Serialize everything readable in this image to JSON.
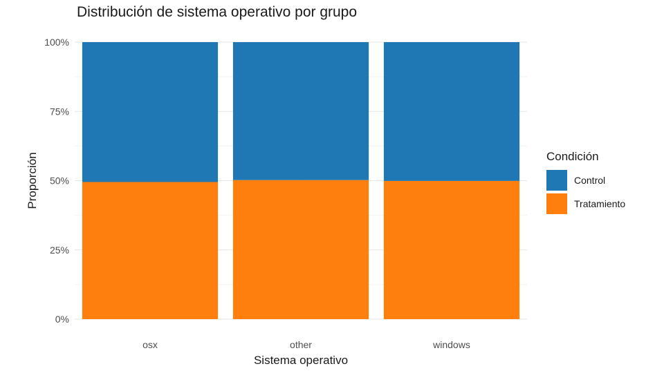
{
  "chart_data": {
    "type": "bar",
    "stacked": true,
    "title": "Distribución de sistema operativo por grupo",
    "xlabel": "Sistema operativo",
    "ylabel": "Proporción",
    "categories": [
      "osx",
      "other",
      "windows"
    ],
    "series": [
      {
        "name": "Tratamiento",
        "color": "#ff7f0e",
        "values": [
          0.495,
          0.502,
          0.499
        ]
      },
      {
        "name": "Control",
        "color": "#1f77b4",
        "values": [
          0.505,
          0.498,
          0.501
        ]
      }
    ],
    "ylim": [
      0,
      1
    ],
    "yticks": [
      0,
      0.25,
      0.5,
      0.75,
      1
    ],
    "ytick_labels": [
      "0%",
      "25%",
      "50%",
      "75%",
      "100%"
    ],
    "grid": true,
    "legend": {
      "title": "Condición",
      "placement": "right",
      "items": [
        {
          "label": "Control",
          "color": "#1f77b4"
        },
        {
          "label": "Tratamiento",
          "color": "#ff7f0e"
        }
      ]
    }
  }
}
